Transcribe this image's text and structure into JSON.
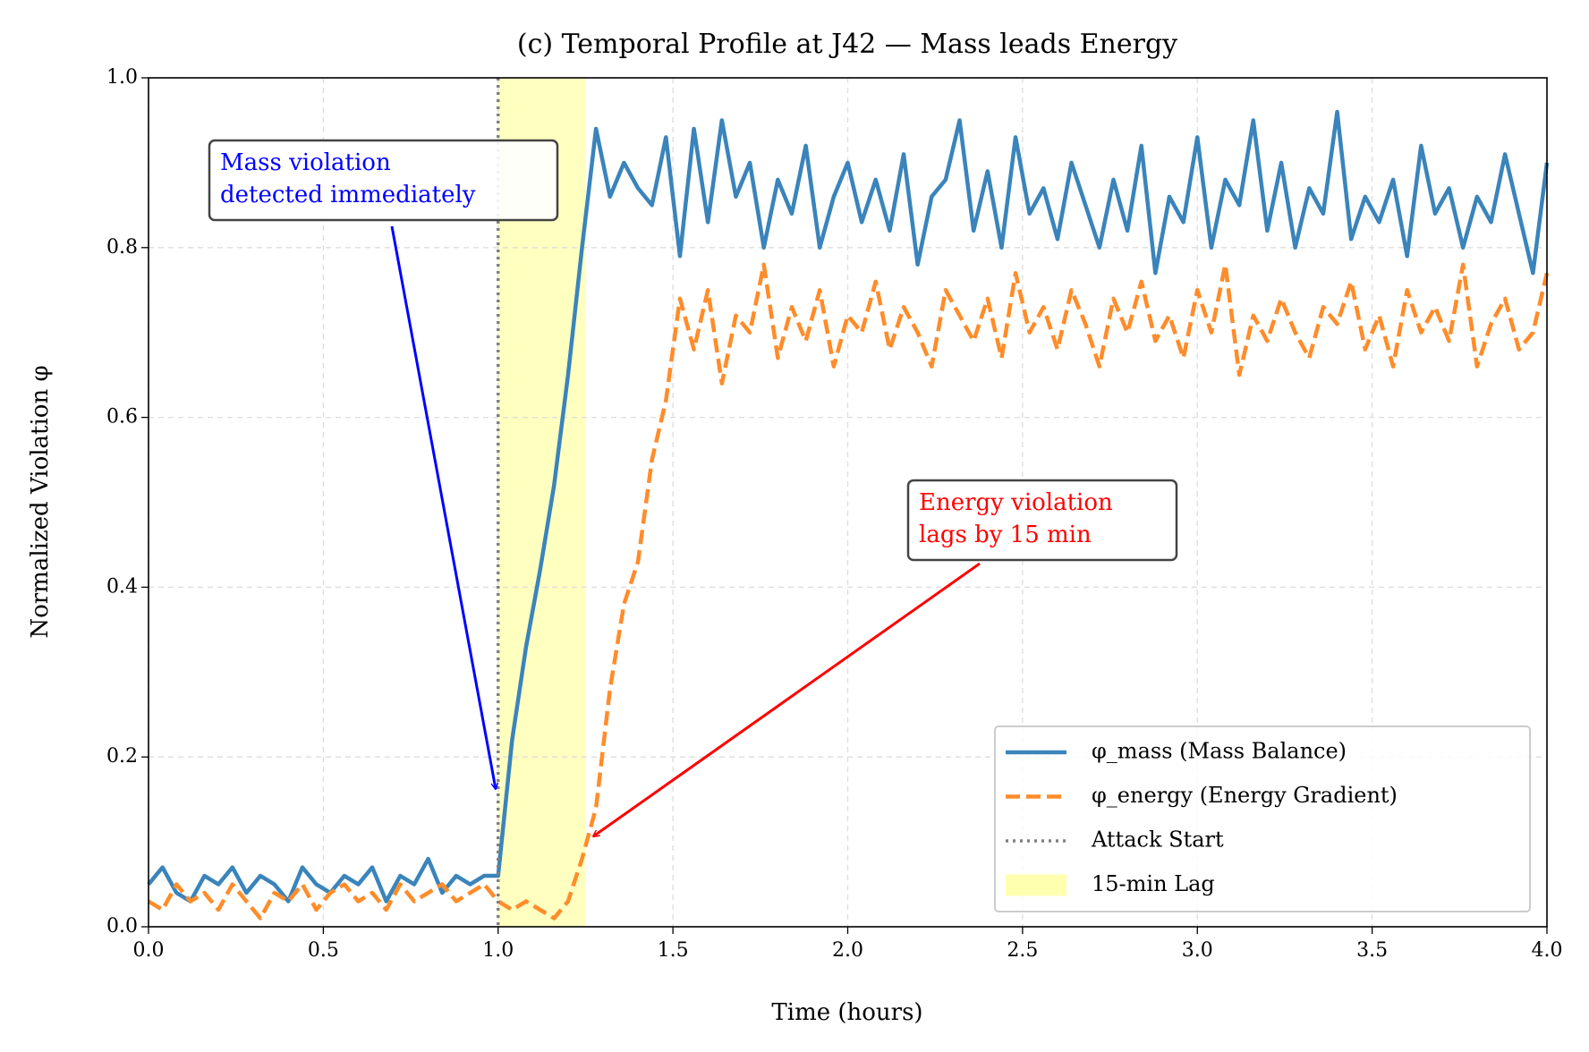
{
  "chart_data": {
    "type": "line",
    "title": "(c) Temporal Profile at J42 — Mass leads Energy",
    "x_label": "Time (hours)",
    "y_label": "Normalized Violation φ",
    "x": [
      0,
      0.04,
      0.08,
      0.12,
      0.16,
      0.2,
      0.24,
      0.28,
      0.32,
      0.36,
      0.4,
      0.44,
      0.48,
      0.52,
      0.56,
      0.6,
      0.64,
      0.68,
      0.72,
      0.76,
      0.8,
      0.84,
      0.88,
      0.92,
      0.96,
      1,
      1.04,
      1.08,
      1.12,
      1.16,
      1.2,
      1.24,
      1.28,
      1.32,
      1.36,
      1.4,
      1.44,
      1.48,
      1.52,
      1.56,
      1.6,
      1.64,
      1.68,
      1.72,
      1.76,
      1.8,
      1.84,
      1.88,
      1.92,
      1.96,
      2,
      2.04,
      2.08,
      2.12,
      2.16,
      2.2,
      2.24,
      2.28,
      2.32,
      2.36,
      2.4,
      2.44,
      2.48,
      2.52,
      2.56,
      2.6,
      2.64,
      2.68,
      2.72,
      2.76,
      2.8,
      2.84,
      2.88,
      2.92,
      2.96,
      3,
      3.04,
      3.08,
      3.12,
      3.16,
      3.2,
      3.24,
      3.28,
      3.32,
      3.36,
      3.4,
      3.44,
      3.48,
      3.52,
      3.56,
      3.6,
      3.64,
      3.68,
      3.72,
      3.76,
      3.8,
      3.84,
      3.88,
      3.92,
      3.96,
      4
    ],
    "series": [
      {
        "name": "φ_mass (Mass Balance)",
        "color": "#3a84bb",
        "style": "solid",
        "values": [
          0.05,
          0.07,
          0.04,
          0.03,
          0.06,
          0.05,
          0.07,
          0.04,
          0.06,
          0.05,
          0.03,
          0.07,
          0.05,
          0.04,
          0.06,
          0.05,
          0.07,
          0.03,
          0.06,
          0.05,
          0.08,
          0.04,
          0.06,
          0.05,
          0.06,
          0.06,
          0.22,
          0.33,
          0.42,
          0.52,
          0.65,
          0.8,
          0.94,
          0.86,
          0.9,
          0.87,
          0.85,
          0.93,
          0.79,
          0.94,
          0.83,
          0.95,
          0.86,
          0.9,
          0.8,
          0.88,
          0.84,
          0.92,
          0.8,
          0.86,
          0.9,
          0.83,
          0.88,
          0.82,
          0.91,
          0.78,
          0.86,
          0.88,
          0.95,
          0.82,
          0.89,
          0.8,
          0.93,
          0.84,
          0.87,
          0.81,
          0.9,
          0.85,
          0.8,
          0.88,
          0.82,
          0.92,
          0.77,
          0.86,
          0.83,
          0.93,
          0.8,
          0.88,
          0.85,
          0.95,
          0.82,
          0.9,
          0.8,
          0.87,
          0.84,
          0.96,
          0.81,
          0.86,
          0.83,
          0.88,
          0.79,
          0.92,
          0.84,
          0.87,
          0.8,
          0.86,
          0.83,
          0.91,
          0.84,
          0.77,
          0.9
        ]
      },
      {
        "name": "φ_energy (Energy Gradient)",
        "color": "#ff8c2a",
        "style": "dashed",
        "values": [
          0.03,
          0.02,
          0.05,
          0.03,
          0.04,
          0.02,
          0.05,
          0.03,
          0.01,
          0.04,
          0.03,
          0.05,
          0.02,
          0.04,
          0.05,
          0.03,
          0.04,
          0.02,
          0.05,
          0.03,
          0.04,
          0.05,
          0.03,
          0.04,
          0.05,
          0.03,
          0.02,
          0.03,
          0.02,
          0.01,
          0.03,
          0.08,
          0.14,
          0.28,
          0.38,
          0.43,
          0.55,
          0.62,
          0.74,
          0.68,
          0.75,
          0.64,
          0.72,
          0.7,
          0.78,
          0.67,
          0.73,
          0.69,
          0.75,
          0.66,
          0.72,
          0.7,
          0.76,
          0.68,
          0.73,
          0.7,
          0.66,
          0.75,
          0.72,
          0.69,
          0.74,
          0.67,
          0.77,
          0.7,
          0.73,
          0.68,
          0.75,
          0.71,
          0.66,
          0.74,
          0.7,
          0.76,
          0.69,
          0.72,
          0.67,
          0.75,
          0.7,
          0.78,
          0.65,
          0.72,
          0.69,
          0.74,
          0.7,
          0.67,
          0.73,
          0.71,
          0.76,
          0.68,
          0.72,
          0.66,
          0.75,
          0.7,
          0.73,
          0.69,
          0.78,
          0.66,
          0.71,
          0.74,
          0.68,
          0.7,
          0.77
        ]
      }
    ],
    "vline": {
      "name": "Attack Start",
      "x": 1,
      "color": "#808080"
    },
    "span": {
      "name": "15-min Lag",
      "x": [
        1,
        1.25
      ],
      "color": "#ffffb0"
    },
    "annotations": [
      {
        "lines": [
          "Mass violation",
          "detected immediately"
        ],
        "color": "#0000ff"
      },
      {
        "lines": [
          "Energy violation",
          "lags by 15 min"
        ],
        "color": "#ff0000"
      }
    ],
    "xlim": [
      0,
      4
    ],
    "ylim": [
      0,
      1
    ],
    "xticks": [
      {
        "value": 0,
        "label": "0.0"
      },
      0.5,
      {
        "value": 1,
        "label": "1.0"
      },
      1.5,
      {
        "value": 2,
        "label": "2.0"
      },
      2.5,
      {
        "value": 3,
        "label": "3.0"
      },
      3.5,
      {
        "value": 4,
        "label": "4.0"
      }
    ],
    "yticks": [
      {
        "value": 0,
        "label": "0.0"
      },
      0.2,
      0.4,
      0.6,
      0.8,
      {
        "value": 1,
        "label": "1.0"
      }
    ],
    "grid": true,
    "legend": "lower right"
  }
}
